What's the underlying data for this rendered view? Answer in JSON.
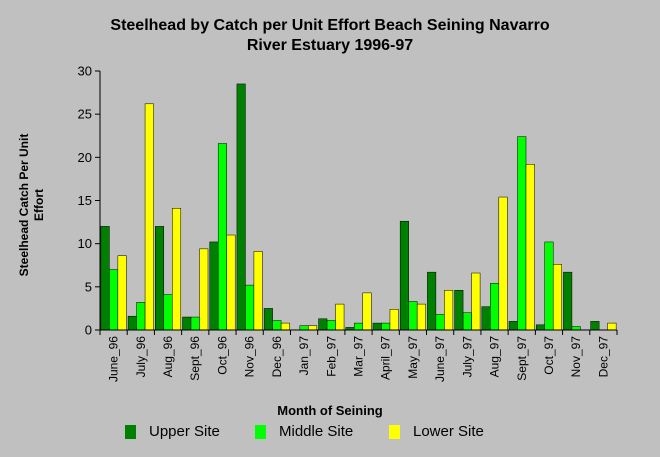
{
  "chart_data": {
    "type": "bar",
    "title": "Steelhead by Catch per Unit Effort Beach Seining Navarro River Estuary 1996-97",
    "title_lines": [
      "Steelhead by Catch per Unit Effort Beach Seining Navarro",
      "River Estuary 1996-97"
    ],
    "xlabel": "Month of Seining",
    "ylabel": "Steelhead Catch Per Unit Effort",
    "ylabel_lines": [
      "Steelhead Catch Per Unit",
      "Effort"
    ],
    "ylim": [
      0,
      30
    ],
    "yticks": [
      "0",
      "5",
      "10",
      "15",
      "20",
      "25",
      "30"
    ],
    "categories": [
      "June_96",
      "July_96",
      "Aug_96",
      "Sept_96",
      "Oct_96",
      "Nov_96",
      "Dec_96",
      "Jan_97",
      "Feb_97",
      "Mar_97",
      "April_97",
      "May_97",
      "June_97",
      "July_97",
      "Aug_97",
      "Sept_97",
      "Oct_97",
      "Nov_97",
      "Dec_97"
    ],
    "series": [
      {
        "name": "Upper Site",
        "color": "#008000",
        "values": [
          12,
          1.6,
          12,
          1.5,
          10.2,
          28.5,
          2.5,
          0,
          1.3,
          0.3,
          0.8,
          12.6,
          6.7,
          4.6,
          2.7,
          1.0,
          0.6,
          6.7,
          1.0
        ]
      },
      {
        "name": "Middle Site",
        "color": "#00ff00",
        "values": [
          7,
          3.2,
          4.1,
          1.5,
          21.6,
          5.2,
          1.1,
          0.5,
          1.1,
          0.8,
          0.8,
          3.3,
          1.8,
          2.0,
          5.4,
          22.4,
          10.2,
          0.4,
          0
        ]
      },
      {
        "name": "Lower Site",
        "color": "#ffff00",
        "values": [
          8.6,
          26.2,
          14.1,
          9.4,
          11,
          9.1,
          0.8,
          0.5,
          3.0,
          4.3,
          2.4,
          3.0,
          4.6,
          6.6,
          15.4,
          19.2,
          7.6,
          0,
          0.8
        ]
      }
    ],
    "grid": false,
    "legend_position": "bottom"
  }
}
